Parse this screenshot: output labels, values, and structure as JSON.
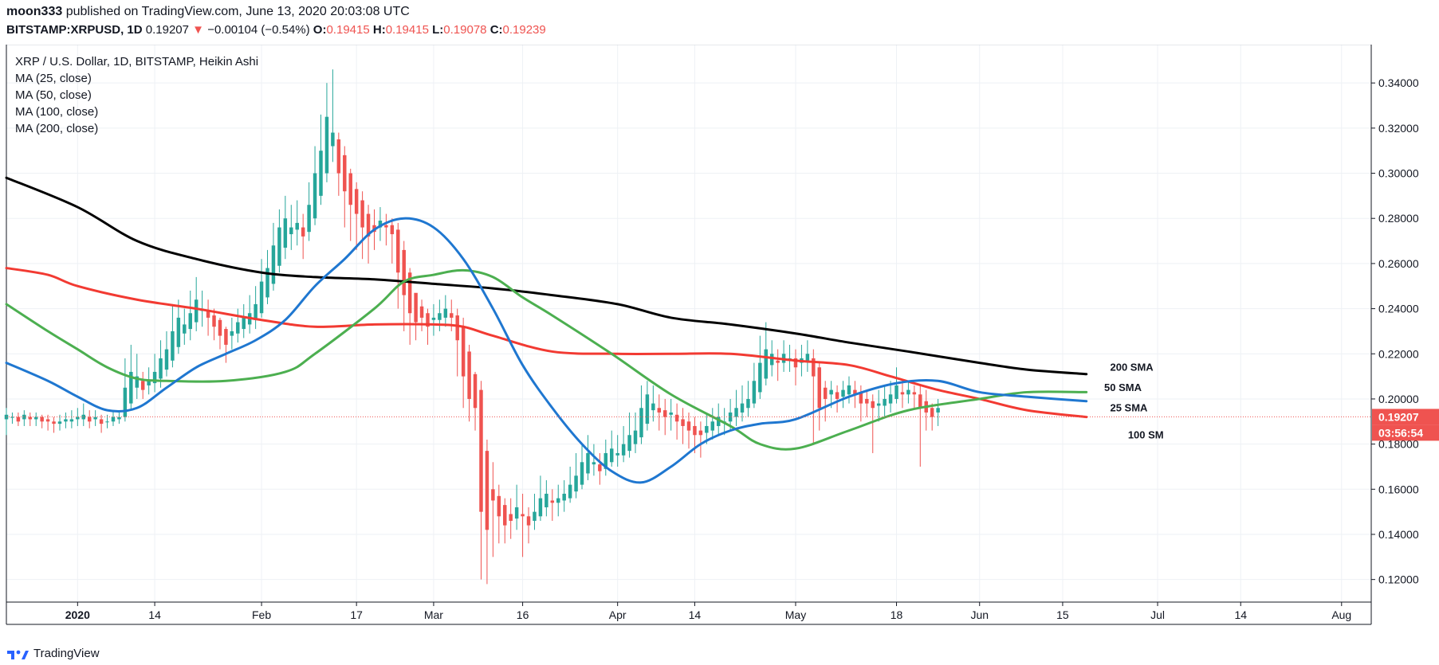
{
  "header": {
    "user": "moon333",
    "published_text": " published on TradingView.com, June 13, 2020 20:03:08 UTC",
    "symbol": "BITSTAMP:XRPUSD",
    "interval": ", 1D ",
    "price": "0.19207",
    "change": "−0.00104 (−0.54%)",
    "o_label": "O:",
    "o_value": "0.19415",
    "h_label": "H:",
    "h_value": "0.19415",
    "l_label": "L:",
    "l_value": "0.19078",
    "c_label": "C:",
    "c_value": "0.19239",
    "down_arrow": "▼"
  },
  "legend": {
    "title": "XRP / U.S. Dollar, 1D, BITSTAMP, Heikin Ashi",
    "items": [
      "MA (25, close)",
      "MA (50, close)",
      "MA (100, close)",
      "MA (200, close)"
    ]
  },
  "footer": {
    "brand": "TradingView",
    "logo_icon": "tradingview-logo-icon"
  },
  "chart_data": {
    "type": "candlestick",
    "title": "XRP / U.S. Dollar, 1D, BITSTAMP, Heikin Ashi",
    "x_tick_labels": [
      "2020",
      "14",
      "Feb",
      "17",
      "Mar",
      "16",
      "Apr",
      "14",
      "May",
      "18",
      "Jun",
      "15",
      "Jul",
      "14",
      "Aug"
    ],
    "x_tick_days": [
      0,
      13,
      31,
      47,
      60,
      75,
      91,
      104,
      121,
      138,
      152,
      166,
      182,
      196,
      213
    ],
    "y_ticks": [
      0.12,
      0.14,
      0.16,
      0.18,
      0.2,
      0.22,
      0.24,
      0.26,
      0.28,
      0.3,
      0.32,
      0.34
    ],
    "ylim": [
      0.11,
      0.357
    ],
    "xlim_days": [
      -12,
      218
    ],
    "last_price": {
      "label": "0.19207",
      "value": 0.19207,
      "color": "#ef5350"
    },
    "countdown": {
      "label": "03:56:54"
    },
    "colors": {
      "up": "#26a69a",
      "down": "#ef5350",
      "ma25": "#f23a32",
      "ma50": "#4caf50",
      "ma100": "#1f77d0",
      "ma200": "#000000",
      "grid": "#eef1f5"
    },
    "annotations": [
      {
        "text": "200 SMA",
        "day": 174,
        "value": 0.2125
      },
      {
        "text": "50 SMA",
        "day": 173,
        "value": 0.2035
      },
      {
        "text": "25 SMA",
        "day": 174,
        "value": 0.1945
      },
      {
        "text": "100 SM",
        "day": 177,
        "value": 0.1825
      }
    ],
    "series": [
      {
        "name": "MA (200, close)",
        "color": "#000000",
        "x": [
          -12,
          0,
          10,
          20,
          31,
          40,
          50,
          60,
          70,
          80,
          91,
          100,
          110,
          121,
          130,
          140,
          152,
          160,
          170
        ],
        "y": [
          0.298,
          0.285,
          0.27,
          0.262,
          0.256,
          0.254,
          0.253,
          0.251,
          0.249,
          0.246,
          0.242,
          0.236,
          0.233,
          0.229,
          0.225,
          0.221,
          0.216,
          0.213,
          0.211
        ]
      },
      {
        "name": "MA (25, close)",
        "color": "#f23a32",
        "x": [
          -12,
          -5,
          0,
          10,
          20,
          31,
          40,
          50,
          60,
          65,
          70,
          80,
          91,
          100,
          110,
          121,
          130,
          137,
          145,
          152,
          160,
          170
        ],
        "y": [
          0.258,
          0.255,
          0.25,
          0.244,
          0.24,
          0.235,
          0.232,
          0.233,
          0.233,
          0.232,
          0.228,
          0.221,
          0.22,
          0.22,
          0.22,
          0.217,
          0.215,
          0.21,
          0.204,
          0.2,
          0.195,
          0.192
        ]
      },
      {
        "name": "MA (50, close)",
        "color": "#4caf50",
        "x": [
          -12,
          -5,
          0,
          5,
          10,
          15,
          25,
          35,
          40,
          50,
          55,
          60,
          65,
          70,
          75,
          80,
          90,
          100,
          110,
          115,
          121,
          130,
          140,
          152,
          160,
          170
        ],
        "y": [
          0.242,
          0.23,
          0.222,
          0.214,
          0.209,
          0.208,
          0.208,
          0.212,
          0.22,
          0.24,
          0.252,
          0.255,
          0.257,
          0.254,
          0.245,
          0.237,
          0.22,
          0.202,
          0.188,
          0.18,
          0.178,
          0.186,
          0.195,
          0.2,
          0.203,
          0.203
        ]
      },
      {
        "name": "MA (100, close)",
        "color": "#1f77d0",
        "x": [
          -12,
          -5,
          0,
          5,
          10,
          15,
          20,
          25,
          30,
          35,
          40,
          45,
          50,
          55,
          60,
          65,
          70,
          75,
          80,
          85,
          90,
          95,
          100,
          105,
          110,
          115,
          121,
          130,
          138,
          145,
          152,
          160,
          170
        ],
        "y": [
          0.216,
          0.208,
          0.201,
          0.195,
          0.196,
          0.205,
          0.214,
          0.22,
          0.226,
          0.235,
          0.25,
          0.262,
          0.275,
          0.28,
          0.276,
          0.262,
          0.24,
          0.215,
          0.196,
          0.18,
          0.168,
          0.163,
          0.17,
          0.18,
          0.186,
          0.189,
          0.191,
          0.201,
          0.207,
          0.208,
          0.203,
          0.201,
          0.199
        ]
      }
    ],
    "candles": [
      [
        -12,
        0.191,
        0.193,
        0.184,
        0.196
      ],
      [
        -11,
        0.192,
        0.192,
        0.189,
        0.194
      ],
      [
        -10,
        0.192,
        0.19,
        0.188,
        0.194
      ],
      [
        -9,
        0.191,
        0.193,
        0.188,
        0.195
      ],
      [
        -8,
        0.192,
        0.191,
        0.188,
        0.194
      ],
      [
        -7,
        0.191,
        0.192,
        0.188,
        0.194
      ],
      [
        -6,
        0.192,
        0.19,
        0.187,
        0.193
      ],
      [
        -5,
        0.191,
        0.19,
        0.186,
        0.193
      ],
      [
        -4,
        0.19,
        0.189,
        0.185,
        0.192
      ],
      [
        -3,
        0.189,
        0.19,
        0.186,
        0.193
      ],
      [
        -2,
        0.19,
        0.191,
        0.187,
        0.194
      ],
      [
        -1,
        0.19,
        0.191,
        0.187,
        0.195
      ],
      [
        0,
        0.191,
        0.192,
        0.188,
        0.196
      ],
      [
        1,
        0.191,
        0.193,
        0.188,
        0.198
      ],
      [
        2,
        0.192,
        0.19,
        0.187,
        0.195
      ],
      [
        3,
        0.191,
        0.192,
        0.188,
        0.195
      ],
      [
        4,
        0.191,
        0.189,
        0.185,
        0.193
      ],
      [
        5,
        0.19,
        0.19,
        0.187,
        0.193
      ],
      [
        6,
        0.19,
        0.192,
        0.188,
        0.195
      ],
      [
        7,
        0.191,
        0.192,
        0.189,
        0.194
      ],
      [
        8,
        0.192,
        0.205,
        0.19,
        0.218
      ],
      [
        9,
        0.198,
        0.212,
        0.195,
        0.224
      ],
      [
        10,
        0.205,
        0.21,
        0.2,
        0.22
      ],
      [
        11,
        0.208,
        0.204,
        0.2,
        0.212
      ],
      [
        12,
        0.206,
        0.208,
        0.202,
        0.214
      ],
      [
        13,
        0.207,
        0.212,
        0.203,
        0.22
      ],
      [
        14,
        0.209,
        0.218,
        0.205,
        0.226
      ],
      [
        15,
        0.213,
        0.222,
        0.21,
        0.23
      ],
      [
        16,
        0.217,
        0.23,
        0.214,
        0.242
      ],
      [
        17,
        0.223,
        0.236,
        0.22,
        0.244
      ],
      [
        18,
        0.229,
        0.233,
        0.224,
        0.24
      ],
      [
        19,
        0.231,
        0.238,
        0.226,
        0.248
      ],
      [
        20,
        0.234,
        0.244,
        0.23,
        0.254
      ],
      [
        21,
        0.239,
        0.24,
        0.232,
        0.248
      ],
      [
        22,
        0.239,
        0.236,
        0.228,
        0.244
      ],
      [
        23,
        0.237,
        0.232,
        0.226,
        0.24
      ],
      [
        24,
        0.235,
        0.228,
        0.222,
        0.236
      ],
      [
        25,
        0.231,
        0.224,
        0.216,
        0.232
      ],
      [
        26,
        0.228,
        0.23,
        0.222,
        0.236
      ],
      [
        27,
        0.229,
        0.234,
        0.225,
        0.24
      ],
      [
        28,
        0.231,
        0.236,
        0.227,
        0.242
      ],
      [
        29,
        0.233,
        0.238,
        0.229,
        0.246
      ],
      [
        30,
        0.235,
        0.242,
        0.231,
        0.25
      ],
      [
        31,
        0.238,
        0.252,
        0.236,
        0.262
      ],
      [
        32,
        0.245,
        0.258,
        0.242,
        0.266
      ],
      [
        33,
        0.251,
        0.268,
        0.248,
        0.278
      ],
      [
        34,
        0.259,
        0.276,
        0.256,
        0.284
      ],
      [
        35,
        0.267,
        0.28,
        0.262,
        0.29
      ],
      [
        36,
        0.273,
        0.276,
        0.266,
        0.286
      ],
      [
        37,
        0.275,
        0.278,
        0.268,
        0.288
      ],
      [
        38,
        0.276,
        0.272,
        0.262,
        0.282
      ],
      [
        39,
        0.274,
        0.286,
        0.27,
        0.296
      ],
      [
        40,
        0.28,
        0.3,
        0.277,
        0.312
      ],
      [
        41,
        0.29,
        0.31,
        0.286,
        0.326
      ],
      [
        42,
        0.3,
        0.325,
        0.296,
        0.34
      ],
      [
        43,
        0.312,
        0.318,
        0.305,
        0.346
      ],
      [
        44,
        0.315,
        0.3,
        0.29,
        0.318
      ],
      [
        45,
        0.308,
        0.292,
        0.276,
        0.312
      ],
      [
        46,
        0.3,
        0.286,
        0.27,
        0.302
      ],
      [
        47,
        0.293,
        0.282,
        0.266,
        0.296
      ],
      [
        48,
        0.288,
        0.276,
        0.262,
        0.292
      ],
      [
        49,
        0.282,
        0.272,
        0.26,
        0.286
      ],
      [
        50,
        0.277,
        0.274,
        0.266,
        0.284
      ],
      [
        51,
        0.276,
        0.279,
        0.27,
        0.285
      ],
      [
        52,
        0.277,
        0.276,
        0.268,
        0.282
      ],
      [
        53,
        0.277,
        0.273,
        0.26,
        0.28
      ],
      [
        54,
        0.275,
        0.256,
        0.24,
        0.278
      ],
      [
        55,
        0.266,
        0.246,
        0.23,
        0.27
      ],
      [
        56,
        0.256,
        0.238,
        0.224,
        0.258
      ],
      [
        57,
        0.247,
        0.234,
        0.226,
        0.246
      ],
      [
        58,
        0.241,
        0.236,
        0.23,
        0.244
      ],
      [
        59,
        0.238,
        0.232,
        0.224,
        0.24
      ],
      [
        60,
        0.235,
        0.236,
        0.228,
        0.242
      ],
      [
        61,
        0.235,
        0.238,
        0.23,
        0.244
      ],
      [
        62,
        0.236,
        0.24,
        0.232,
        0.246
      ],
      [
        63,
        0.238,
        0.236,
        0.23,
        0.244
      ],
      [
        64,
        0.237,
        0.226,
        0.21,
        0.24
      ],
      [
        65,
        0.232,
        0.21,
        0.196,
        0.236
      ],
      [
        66,
        0.221,
        0.2,
        0.19,
        0.224
      ],
      [
        67,
        0.211,
        0.196,
        0.186,
        0.212
      ],
      [
        68,
        0.204,
        0.15,
        0.12,
        0.208
      ],
      [
        69,
        0.177,
        0.142,
        0.118,
        0.182
      ],
      [
        70,
        0.16,
        0.155,
        0.13,
        0.172
      ],
      [
        71,
        0.157,
        0.148,
        0.136,
        0.162
      ],
      [
        72,
        0.153,
        0.144,
        0.136,
        0.156
      ],
      [
        73,
        0.149,
        0.146,
        0.138,
        0.156
      ],
      [
        74,
        0.147,
        0.152,
        0.142,
        0.162
      ],
      [
        75,
        0.149,
        0.148,
        0.13,
        0.158
      ],
      [
        76,
        0.148,
        0.144,
        0.136,
        0.152
      ],
      [
        77,
        0.146,
        0.15,
        0.142,
        0.158
      ],
      [
        78,
        0.148,
        0.156,
        0.146,
        0.166
      ],
      [
        79,
        0.152,
        0.158,
        0.148,
        0.164
      ],
      [
        80,
        0.155,
        0.154,
        0.146,
        0.16
      ],
      [
        81,
        0.154,
        0.156,
        0.148,
        0.162
      ],
      [
        82,
        0.155,
        0.158,
        0.15,
        0.164
      ],
      [
        83,
        0.156,
        0.162,
        0.154,
        0.17
      ],
      [
        84,
        0.159,
        0.166,
        0.156,
        0.176
      ],
      [
        85,
        0.162,
        0.172,
        0.16,
        0.18
      ],
      [
        86,
        0.167,
        0.176,
        0.164,
        0.184
      ],
      [
        87,
        0.171,
        0.172,
        0.166,
        0.18
      ],
      [
        88,
        0.171,
        0.168,
        0.162,
        0.176
      ],
      [
        89,
        0.169,
        0.176,
        0.166,
        0.182
      ],
      [
        90,
        0.172,
        0.178,
        0.17,
        0.186
      ],
      [
        91,
        0.175,
        0.176,
        0.17,
        0.184
      ],
      [
        92,
        0.175,
        0.18,
        0.172,
        0.188
      ],
      [
        93,
        0.177,
        0.184,
        0.174,
        0.194
      ],
      [
        94,
        0.18,
        0.186,
        0.176,
        0.194
      ],
      [
        95,
        0.183,
        0.196,
        0.18,
        0.206
      ],
      [
        96,
        0.189,
        0.202,
        0.186,
        0.208
      ],
      [
        97,
        0.195,
        0.198,
        0.19,
        0.206
      ],
      [
        98,
        0.196,
        0.194,
        0.186,
        0.202
      ],
      [
        99,
        0.195,
        0.192,
        0.184,
        0.2
      ],
      [
        100,
        0.193,
        0.194,
        0.186,
        0.2
      ],
      [
        101,
        0.193,
        0.19,
        0.182,
        0.198
      ],
      [
        102,
        0.191,
        0.188,
        0.18,
        0.196
      ],
      [
        103,
        0.19,
        0.186,
        0.178,
        0.194
      ],
      [
        104,
        0.188,
        0.184,
        0.176,
        0.192
      ],
      [
        105,
        0.186,
        0.184,
        0.174,
        0.19
      ],
      [
        106,
        0.185,
        0.188,
        0.18,
        0.194
      ],
      [
        107,
        0.186,
        0.19,
        0.182,
        0.196
      ],
      [
        108,
        0.188,
        0.192,
        0.184,
        0.198
      ],
      [
        109,
        0.19,
        0.19,
        0.184,
        0.196
      ],
      [
        110,
        0.19,
        0.194,
        0.186,
        0.2
      ],
      [
        111,
        0.192,
        0.196,
        0.188,
        0.204
      ],
      [
        112,
        0.194,
        0.198,
        0.19,
        0.206
      ],
      [
        113,
        0.196,
        0.2,
        0.192,
        0.208
      ],
      [
        114,
        0.198,
        0.208,
        0.196,
        0.216
      ],
      [
        115,
        0.203,
        0.216,
        0.2,
        0.228
      ],
      [
        116,
        0.209,
        0.222,
        0.206,
        0.234
      ],
      [
        117,
        0.215,
        0.22,
        0.21,
        0.226
      ],
      [
        118,
        0.217,
        0.216,
        0.208,
        0.222
      ],
      [
        119,
        0.216,
        0.22,
        0.212,
        0.226
      ],
      [
        120,
        0.218,
        0.218,
        0.212,
        0.224
      ],
      [
        121,
        0.218,
        0.214,
        0.206,
        0.222
      ],
      [
        122,
        0.216,
        0.218,
        0.21,
        0.224
      ],
      [
        123,
        0.217,
        0.22,
        0.212,
        0.226
      ],
      [
        124,
        0.218,
        0.21,
        0.18,
        0.222
      ],
      [
        125,
        0.214,
        0.196,
        0.186,
        0.216
      ],
      [
        126,
        0.205,
        0.2,
        0.19,
        0.208
      ],
      [
        127,
        0.202,
        0.204,
        0.196,
        0.208
      ],
      [
        128,
        0.203,
        0.2,
        0.194,
        0.206
      ],
      [
        129,
        0.201,
        0.204,
        0.196,
        0.208
      ],
      [
        130,
        0.202,
        0.206,
        0.198,
        0.21
      ],
      [
        131,
        0.204,
        0.202,
        0.196,
        0.208
      ],
      [
        132,
        0.203,
        0.198,
        0.19,
        0.206
      ],
      [
        133,
        0.2,
        0.198,
        0.192,
        0.204
      ],
      [
        134,
        0.199,
        0.196,
        0.176,
        0.202
      ],
      [
        135,
        0.197,
        0.198,
        0.19,
        0.204
      ],
      [
        136,
        0.197,
        0.2,
        0.192,
        0.206
      ],
      [
        137,
        0.198,
        0.202,
        0.194,
        0.208
      ],
      [
        138,
        0.2,
        0.206,
        0.198,
        0.214
      ],
      [
        139,
        0.203,
        0.202,
        0.196,
        0.208
      ],
      [
        140,
        0.202,
        0.204,
        0.198,
        0.208
      ],
      [
        141,
        0.203,
        0.202,
        0.196,
        0.206
      ],
      [
        142,
        0.202,
        0.196,
        0.17,
        0.206
      ],
      [
        143,
        0.199,
        0.194,
        0.186,
        0.204
      ],
      [
        144,
        0.196,
        0.192,
        0.186,
        0.198
      ],
      [
        145,
        0.194,
        0.196,
        0.188,
        0.2
      ]
    ]
  }
}
